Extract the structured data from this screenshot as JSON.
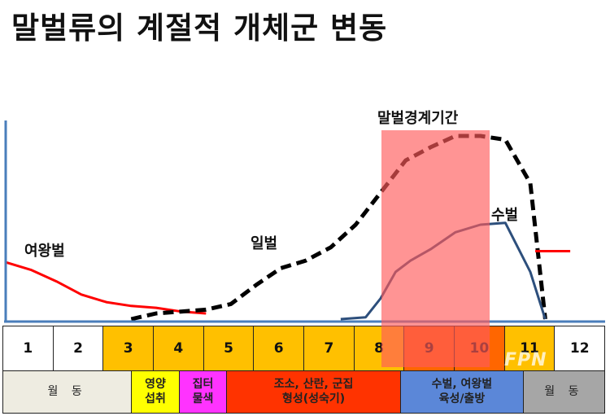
{
  "title": "말벌류의 계절적 개체군 변동",
  "highlight_label": "말벌경계기간",
  "logo_text": "FPN",
  "months": [
    "1",
    "2",
    "3",
    "4",
    "5",
    "6",
    "7",
    "8",
    "9",
    "10",
    "11",
    "12"
  ],
  "month_colors": [
    "#ffffff",
    "#ffffff",
    "#ffc000",
    "#ffc000",
    "#ffc000",
    "#ffc000",
    "#ffc000",
    "#ffc000",
    "#ff6600",
    "#ff6600",
    "#ffc000",
    "#ffffff"
  ],
  "phases": [
    {
      "line1": "월 동",
      "line2": "",
      "color": "#eeece1",
      "span": 2.57
    },
    {
      "line1": "영양",
      "line2": "섭취",
      "color": "#ffff00",
      "span": 0.95
    },
    {
      "line1": "집터",
      "line2": "물색",
      "color": "#ff33ff",
      "span": 0.95
    },
    {
      "line1": "조소, 산란, 군집",
      "line2": "형성(성숙기)",
      "color": "#ff3300",
      "span": 3.47
    },
    {
      "line1": "수벌, 여왕벌",
      "line2": "육성/출방",
      "color": "#5b87d8",
      "span": 2.45
    },
    {
      "line1": "월 동",
      "line2": "",
      "color": "#a6a6a6",
      "span": 1.61
    }
  ],
  "chart_data": {
    "type": "line",
    "title": "말벌류의 계절적 개체군 변동",
    "xlabel": "",
    "ylabel": "",
    "xlim": [
      0.5,
      12.5
    ],
    "ylim": [
      0,
      100
    ],
    "highlight_range": [
      8.1,
      10.2
    ],
    "series": [
      {
        "name": "여왕벌",
        "color": "#ff0000",
        "style": "solid",
        "x": [
          0.5,
          1.0,
          1.5,
          2.0,
          2.5,
          3.0,
          3.5,
          4.0,
          4.5
        ],
        "y": [
          30,
          26,
          20,
          13,
          9,
          7,
          6,
          4,
          3
        ]
      },
      {
        "name": "일벌",
        "color": "#000000",
        "style": "dashed",
        "x": [
          3.0,
          3.5,
          4.0,
          4.5,
          5.0,
          5.5,
          6.0,
          6.5,
          7.0,
          7.5,
          8.0,
          8.5,
          9.0,
          9.5,
          10.0,
          10.5,
          11.0,
          11.3
        ],
        "y": [
          0,
          3,
          4,
          5,
          8,
          18,
          27,
          31,
          38,
          50,
          67,
          84,
          91,
          97,
          97,
          95,
          72,
          0
        ]
      },
      {
        "name": "수벌",
        "color": "#2d4f7c",
        "style": "solid",
        "x": [
          7.2,
          7.7,
          8.0,
          8.3,
          8.6,
          9.0,
          9.5,
          10.0,
          10.5,
          11.0,
          11.3
        ],
        "y": [
          0,
          1,
          11,
          25,
          31,
          37,
          46,
          50,
          51,
          25,
          0
        ]
      },
      {
        "name": "",
        "color": "#ff0000",
        "style": "solid",
        "x": [
          11.1,
          11.8
        ],
        "y": [
          36,
          36
        ]
      }
    ]
  }
}
